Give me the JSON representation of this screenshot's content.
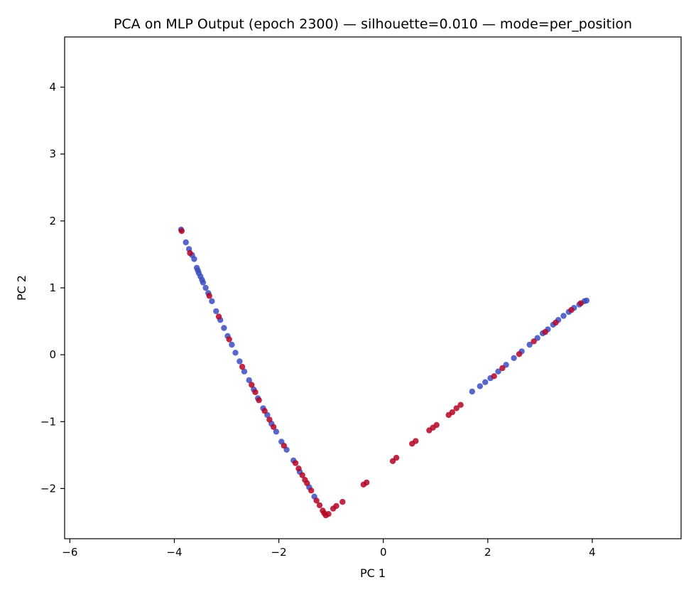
{
  "chart_data": {
    "type": "scatter",
    "title": "PCA on MLP Output (epoch 2300) — silhouette=0.010 — mode=per_position",
    "xlabel": "PC 1",
    "ylabel": "PC 2",
    "xlim": [
      -6.1,
      5.7
    ],
    "ylim": [
      -2.75,
      4.75
    ],
    "xticks": [
      -6,
      -4,
      -2,
      0,
      2,
      4
    ],
    "yticks": [
      -2,
      -1,
      0,
      1,
      2,
      3,
      4
    ],
    "xtick_labels": [
      "−6",
      "−4",
      "−2",
      "0",
      "2",
      "4"
    ],
    "ytick_labels": [
      "−2",
      "−1",
      "0",
      "1",
      "2",
      "3",
      "4"
    ],
    "grid": false,
    "legend": "none",
    "colors": {
      "class_a": "#3b4cc0",
      "class_b": "#b40426"
    },
    "series": [
      {
        "color": "#3b4cc0",
        "points": [
          [
            -3.87,
            1.87
          ],
          [
            -3.78,
            1.68
          ],
          [
            -3.72,
            1.58
          ],
          [
            -3.66,
            1.49
          ],
          [
            -3.62,
            1.43
          ],
          [
            -3.57,
            1.3
          ],
          [
            -3.55,
            1.26
          ],
          [
            -3.53,
            1.22
          ],
          [
            -3.5,
            1.17
          ],
          [
            -3.47,
            1.12
          ],
          [
            -3.45,
            1.08
          ],
          [
            -3.4,
            1.0
          ],
          [
            -3.35,
            0.92
          ],
          [
            -3.28,
            0.8
          ],
          [
            -3.2,
            0.65
          ],
          [
            -3.12,
            0.52
          ],
          [
            -3.05,
            0.4
          ],
          [
            -2.98,
            0.28
          ],
          [
            -2.9,
            0.15
          ],
          [
            -2.83,
            0.03
          ],
          [
            -2.75,
            -0.1
          ],
          [
            -2.66,
            -0.25
          ],
          [
            -2.57,
            -0.38
          ],
          [
            -2.48,
            -0.52
          ],
          [
            -2.4,
            -0.65
          ],
          [
            -2.3,
            -0.8
          ],
          [
            -2.22,
            -0.9
          ],
          [
            -2.14,
            -1.03
          ],
          [
            -2.05,
            -1.15
          ],
          [
            -1.95,
            -1.3
          ],
          [
            -1.85,
            -1.42
          ],
          [
            -1.72,
            -1.58
          ],
          [
            -1.6,
            -1.75
          ],
          [
            -1.42,
            -1.98
          ],
          [
            -1.32,
            -2.12
          ],
          [
            1.7,
            -0.55
          ],
          [
            1.85,
            -0.47
          ],
          [
            1.95,
            -0.41
          ],
          [
            2.05,
            -0.35
          ],
          [
            2.2,
            -0.25
          ],
          [
            2.35,
            -0.15
          ],
          [
            2.5,
            -0.05
          ],
          [
            2.65,
            0.05
          ],
          [
            2.8,
            0.15
          ],
          [
            2.95,
            0.25
          ],
          [
            3.05,
            0.32
          ],
          [
            3.15,
            0.38
          ],
          [
            3.25,
            0.45
          ],
          [
            3.35,
            0.52
          ],
          [
            3.45,
            0.58
          ],
          [
            3.55,
            0.64
          ],
          [
            3.65,
            0.7
          ],
          [
            3.75,
            0.75
          ],
          [
            3.85,
            0.8
          ],
          [
            3.89,
            0.81
          ]
        ]
      },
      {
        "color": "#b40426",
        "points": [
          [
            -3.86,
            1.85
          ],
          [
            -3.7,
            1.52
          ],
          [
            -3.33,
            0.88
          ],
          [
            -3.15,
            0.57
          ],
          [
            -2.95,
            0.23
          ],
          [
            -2.7,
            -0.18
          ],
          [
            -2.52,
            -0.45
          ],
          [
            -2.45,
            -0.56
          ],
          [
            -2.38,
            -0.68
          ],
          [
            -2.27,
            -0.84
          ],
          [
            -2.18,
            -0.97
          ],
          [
            -2.1,
            -1.08
          ],
          [
            -1.9,
            -1.36
          ],
          [
            -1.68,
            -1.62
          ],
          [
            -1.62,
            -1.7
          ],
          [
            -1.55,
            -1.8
          ],
          [
            -1.5,
            -1.87
          ],
          [
            -1.46,
            -1.92
          ],
          [
            -1.38,
            -2.03
          ],
          [
            -1.28,
            -2.18
          ],
          [
            -1.22,
            -2.25
          ],
          [
            -1.16,
            -2.33
          ],
          [
            -1.13,
            -2.37
          ],
          [
            -1.1,
            -2.4
          ],
          [
            -1.05,
            -2.38
          ],
          [
            -0.96,
            -2.3
          ],
          [
            -0.9,
            -2.26
          ],
          [
            -0.78,
            -2.2
          ],
          [
            -0.38,
            -1.94
          ],
          [
            -0.32,
            -1.91
          ],
          [
            0.18,
            -1.59
          ],
          [
            0.25,
            -1.54
          ],
          [
            0.55,
            -1.33
          ],
          [
            0.62,
            -1.29
          ],
          [
            0.88,
            -1.13
          ],
          [
            0.95,
            -1.09
          ],
          [
            1.02,
            -1.05
          ],
          [
            1.25,
            -0.9
          ],
          [
            1.32,
            -0.86
          ],
          [
            1.4,
            -0.8
          ],
          [
            1.48,
            -0.75
          ],
          [
            2.12,
            -0.32
          ],
          [
            2.28,
            -0.2
          ],
          [
            2.6,
            0.01
          ],
          [
            2.88,
            0.2
          ],
          [
            3.1,
            0.34
          ],
          [
            3.3,
            0.48
          ],
          [
            3.6,
            0.67
          ],
          [
            3.78,
            0.77
          ]
        ]
      }
    ]
  }
}
